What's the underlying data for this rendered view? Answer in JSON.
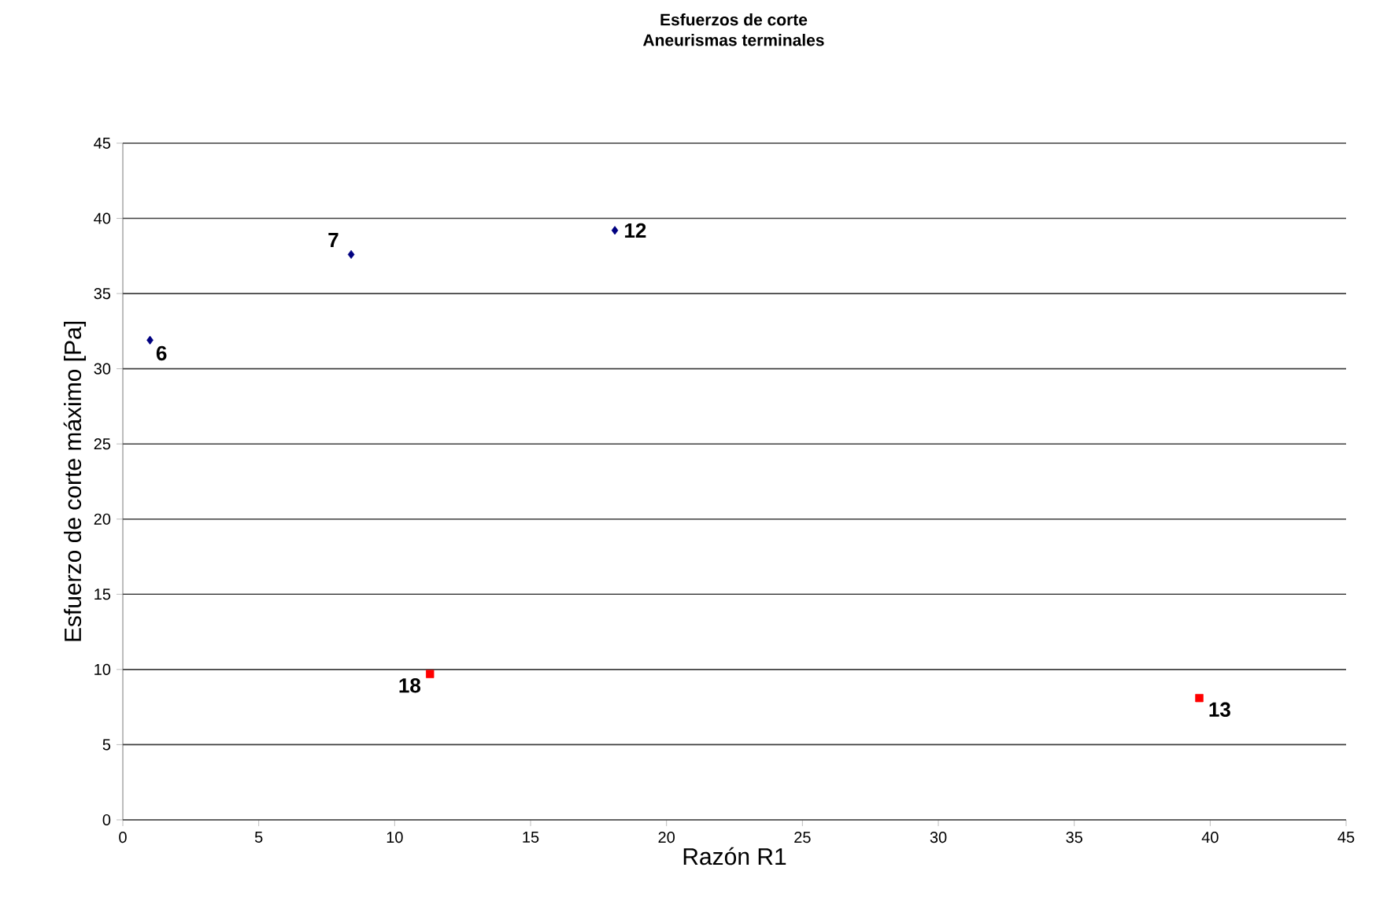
{
  "chart_data": {
    "type": "scatter",
    "title": "Esfuerzos de corte",
    "subtitle": "Aneurismas terminales",
    "xlabel": "Razón R1",
    "ylabel": "Esfuerzo de corte máximo [Pa]",
    "series": [
      {
        "color": "#000080",
        "marker": "diamond",
        "x": [
          1.0,
          8.4,
          18.1
        ],
        "values": [
          31.9,
          37.6,
          39.2
        ]
      },
      {
        "color": "#ff0000",
        "marker": "square",
        "x": [
          11.3,
          39.6
        ],
        "values": [
          9.7,
          8.1
        ]
      }
    ],
    "annotations": [
      {
        "text": "6",
        "x": 1.0,
        "y": 31.9
      },
      {
        "text": "7",
        "x": 8.4,
        "y": 37.6
      },
      {
        "text": "12",
        "x": 18.1,
        "y": 39.2
      },
      {
        "text": "18",
        "x": 11.3,
        "y": 9.7
      },
      {
        "text": "13",
        "x": 39.6,
        "y": 8.1
      }
    ],
    "xlim": [
      0,
      45
    ],
    "ylim": [
      0,
      45
    ],
    "xticks": [
      0,
      5,
      10,
      15,
      20,
      25,
      30,
      35,
      40,
      45
    ],
    "yticks": [
      0,
      5,
      10,
      15,
      20,
      25,
      30,
      35,
      40,
      45
    ],
    "grid": "y"
  }
}
